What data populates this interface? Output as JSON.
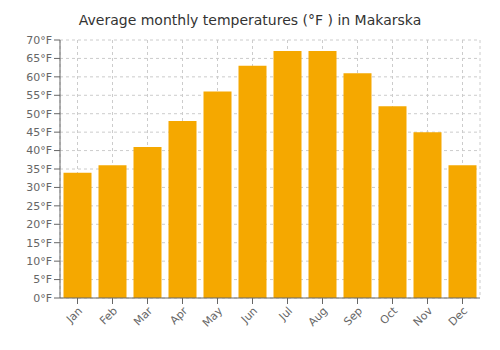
{
  "chart_data": {
    "type": "bar",
    "title": "Average monthly temperatures (°F ) in Makarska",
    "categories": [
      "Jan",
      "Feb",
      "Mar",
      "Apr",
      "May",
      "Jun",
      "Jul",
      "Aug",
      "Sep",
      "Oct",
      "Nov",
      "Dec"
    ],
    "values": [
      34,
      36,
      41,
      48,
      56,
      63,
      67,
      67,
      61,
      52,
      45,
      36
    ],
    "color": "#F5A800",
    "ylim": [
      0,
      70
    ],
    "yticks": [
      {
        "value": 0,
        "label": "0°F"
      },
      {
        "value": 5,
        "label": "5°F"
      },
      {
        "value": 10,
        "label": "10°F"
      },
      {
        "value": 15,
        "label": "15°F"
      },
      {
        "value": 20,
        "label": "20°F"
      },
      {
        "value": 25,
        "label": "25°F"
      },
      {
        "value": 30,
        "label": "30°F"
      },
      {
        "value": 35,
        "label": "35°F"
      },
      {
        "value": 40,
        "label": "40°F"
      },
      {
        "value": 45,
        "label": "45°F"
      },
      {
        "value": 50,
        "label": "50°F"
      },
      {
        "value": 55,
        "label": "55°F"
      },
      {
        "value": 60,
        "label": "60°F"
      },
      {
        "value": 65,
        "label": "65°F"
      },
      {
        "value": 70,
        "label": "70°F"
      }
    ],
    "grid": true
  }
}
